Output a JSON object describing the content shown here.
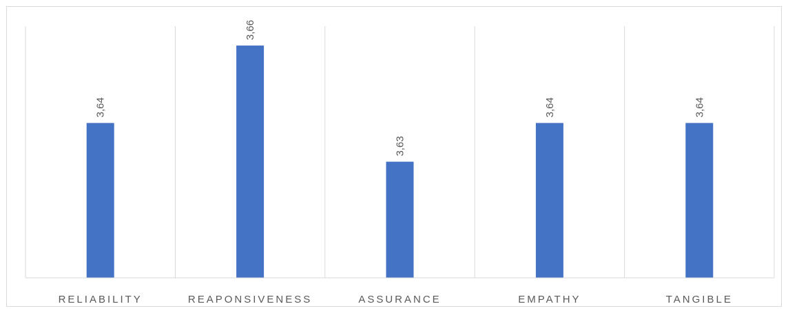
{
  "chart_data": {
    "type": "bar",
    "title": "",
    "xlabel": "",
    "ylabel": "",
    "categories": [
      "RELIABILITY",
      "REAPONSIVENESS",
      "ASSURANCE",
      "EMPATHY",
      "TANGIBLE"
    ],
    "values": [
      3.64,
      3.66,
      3.63,
      3.64,
      3.64
    ],
    "data_labels": [
      "3,64",
      "3,66",
      "3,63",
      "3,64",
      "3,64"
    ],
    "ylim": [
      3.6,
      3.665
    ],
    "y_axis_visible": false,
    "gridlines": "vertical category separators",
    "legend": "none",
    "bar_color": "#4472C4",
    "grid_color": "#d9d9d9",
    "label_color": "#595959"
  }
}
